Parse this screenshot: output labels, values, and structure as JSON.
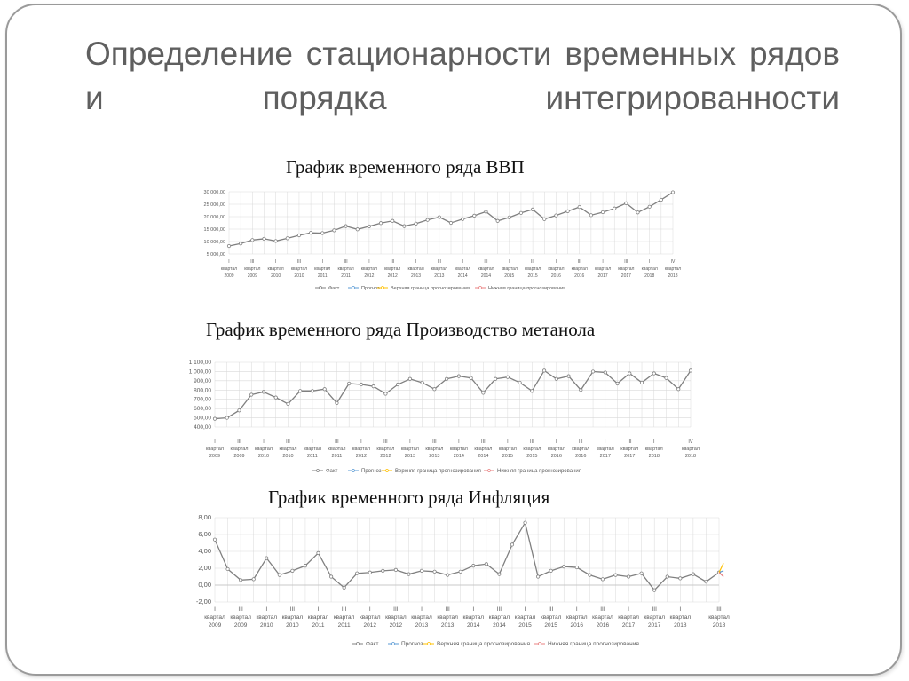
{
  "slide": {
    "title": "Определение стационарности временных рядов и порядка интегрированности",
    "colors": {
      "series": "#808080",
      "forecast": "#5b9bd5",
      "upper": "#ffc000",
      "lower": "#e88080",
      "grid": "#d9d9d9",
      "title": "#5f5f5f"
    }
  },
  "chart_data": [
    {
      "type": "line",
      "title": "График временного ряда ВВП",
      "y_ticks": [
        "30 000,00",
        "25 000,00",
        "20 000,00",
        "15 000,00",
        "10 000,00",
        "5 000,00"
      ],
      "ylim": [
        5000,
        30000
      ],
      "x_ticks": [
        [
          "I",
          "квартал",
          "2009"
        ],
        [
          "III",
          "квартал",
          "2009"
        ],
        [
          "I",
          "квартал",
          "2010"
        ],
        [
          "III",
          "квартал",
          "2010"
        ],
        [
          "I",
          "квартал",
          "2011"
        ],
        [
          "III",
          "квартал",
          "2011"
        ],
        [
          "I",
          "квартал",
          "2012"
        ],
        [
          "III",
          "квартал",
          "2012"
        ],
        [
          "I",
          "квартал",
          "2013"
        ],
        [
          "III",
          "квартал",
          "2013"
        ],
        [
          "I",
          "квартал",
          "2014"
        ],
        [
          "III",
          "квартал",
          "2014"
        ],
        [
          "I",
          "квартал",
          "2015"
        ],
        [
          "III",
          "квартал",
          "2015"
        ],
        [
          "I",
          "квартал",
          "2016"
        ],
        [
          "III",
          "квартал",
          "2016"
        ],
        [
          "I",
          "квартал",
          "2017"
        ],
        [
          "III",
          "квартал",
          "2017"
        ],
        [
          "I",
          "квартал",
          "2018"
        ],
        [
          "IV",
          "квартал",
          "2018"
        ]
      ],
      "series": [
        {
          "name": "Факт",
          "values": [
            8200,
            9200,
            10600,
            11100,
            10200,
            11300,
            12500,
            13500,
            13400,
            14500,
            16200,
            14900,
            16100,
            17400,
            18300,
            16200,
            17200,
            18700,
            19800,
            17500,
            19000,
            20400,
            22000,
            18300,
            19700,
            21500,
            22900,
            19000,
            20500,
            22200,
            23900,
            20600,
            21800,
            23300,
            25400,
            21700,
            24000,
            26800,
            29800
          ]
        },
        {
          "name": "Прогноз",
          "values": []
        },
        {
          "name": "Верхняя граница прогнозирования",
          "values": []
        },
        {
          "name": "Нижняя граница прогнозирования",
          "values": []
        }
      ]
    },
    {
      "type": "line",
      "title": "График временного ряда Производство метанола",
      "y_ticks": [
        "1 100,00",
        "1 000,00",
        "900,00",
        "800,00",
        "700,00",
        "600,00",
        "500,00",
        "400,00"
      ],
      "ylim": [
        400,
        1100
      ],
      "x_ticks": [
        [
          "I",
          "квартал",
          "2009"
        ],
        [
          "III",
          "квартал",
          "2009"
        ],
        [
          "I",
          "квартал",
          "2010"
        ],
        [
          "III",
          "квартал",
          "2010"
        ],
        [
          "I",
          "квартал",
          "2011"
        ],
        [
          "III",
          "квартал",
          "2011"
        ],
        [
          "I",
          "квартал",
          "2012"
        ],
        [
          "III",
          "квартал",
          "2012"
        ],
        [
          "I",
          "квартал",
          "2013"
        ],
        [
          "III",
          "квартал",
          "2013"
        ],
        [
          "I",
          "квартал",
          "2014"
        ],
        [
          "III",
          "квартал",
          "2014"
        ],
        [
          "I",
          "квартал",
          "2015"
        ],
        [
          "III",
          "квартал",
          "2015"
        ],
        [
          "I",
          "квартал",
          "2016"
        ],
        [
          "III",
          "квартал",
          "2016"
        ],
        [
          "I",
          "квартал",
          "2017"
        ],
        [
          "III",
          "квартал",
          "2017"
        ],
        [
          "I",
          "квартал",
          "2018"
        ],
        [
          "IV",
          "квартал",
          "2018"
        ]
      ],
      "series": [
        {
          "name": "Факт",
          "values": [
            490,
            500,
            580,
            750,
            780,
            720,
            650,
            790,
            790,
            810,
            660,
            870,
            860,
            840,
            760,
            860,
            920,
            880,
            810,
            920,
            950,
            930,
            770,
            920,
            940,
            880,
            790,
            1010,
            920,
            950,
            800,
            1000,
            990,
            870,
            980,
            880,
            980,
            930,
            810,
            1010
          ]
        },
        {
          "name": "Прогноз",
          "values": []
        },
        {
          "name": "Верхняя граница прогнозирования",
          "values": []
        },
        {
          "name": "Нижняя граница прогнозирования",
          "values": []
        }
      ]
    },
    {
      "type": "line",
      "title": "График временного ряда Инфляция",
      "y_ticks": [
        "8,00",
        "6,00",
        "4,00",
        "2,00",
        "0,00",
        "-2,00"
      ],
      "ylim": [
        -2,
        8
      ],
      "x_ticks": [
        [
          "I",
          "квартал",
          "2009"
        ],
        [
          "III",
          "квартал",
          "2009"
        ],
        [
          "I",
          "квартал",
          "2010"
        ],
        [
          "III",
          "квартал",
          "2010"
        ],
        [
          "I",
          "квартал",
          "2011"
        ],
        [
          "III",
          "квартал",
          "2011"
        ],
        [
          "I",
          "квартал",
          "2012"
        ],
        [
          "III",
          "квартал",
          "2012"
        ],
        [
          "I",
          "квартал",
          "2013"
        ],
        [
          "III",
          "квартал",
          "2013"
        ],
        [
          "I",
          "квартал",
          "2014"
        ],
        [
          "III",
          "квартал",
          "2014"
        ],
        [
          "I",
          "квартал",
          "2015"
        ],
        [
          "III",
          "квартал",
          "2015"
        ],
        [
          "I",
          "квартал",
          "2016"
        ],
        [
          "III",
          "квартал",
          "2016"
        ],
        [
          "I",
          "квартал",
          "2017"
        ],
        [
          "III",
          "квартал",
          "2017"
        ],
        [
          "I",
          "квартал",
          "2018"
        ],
        [
          "III",
          "квартал",
          "2018"
        ]
      ],
      "series": [
        {
          "name": "Факт",
          "values": [
            5.4,
            1.9,
            0.6,
            0.7,
            3.2,
            1.2,
            1.7,
            2.3,
            3.8,
            1.0,
            -0.3,
            1.4,
            1.5,
            1.7,
            1.8,
            1.3,
            1.7,
            1.6,
            1.2,
            1.6,
            2.3,
            2.5,
            1.3,
            4.8,
            7.4,
            1.0,
            1.7,
            2.2,
            2.1,
            1.2,
            0.7,
            1.2,
            1.0,
            1.4,
            -0.6,
            1.0,
            0.8,
            1.3,
            0.4,
            1.5
          ]
        },
        {
          "name": "Прогноз",
          "values": [
            1.5,
            1.7
          ]
        },
        {
          "name": "Верхняя граница прогнозирования",
          "values": [
            1.5,
            2.6
          ]
        },
        {
          "name": "Нижняя граница прогнозирования",
          "values": [
            1.5,
            1.0
          ]
        }
      ]
    }
  ]
}
